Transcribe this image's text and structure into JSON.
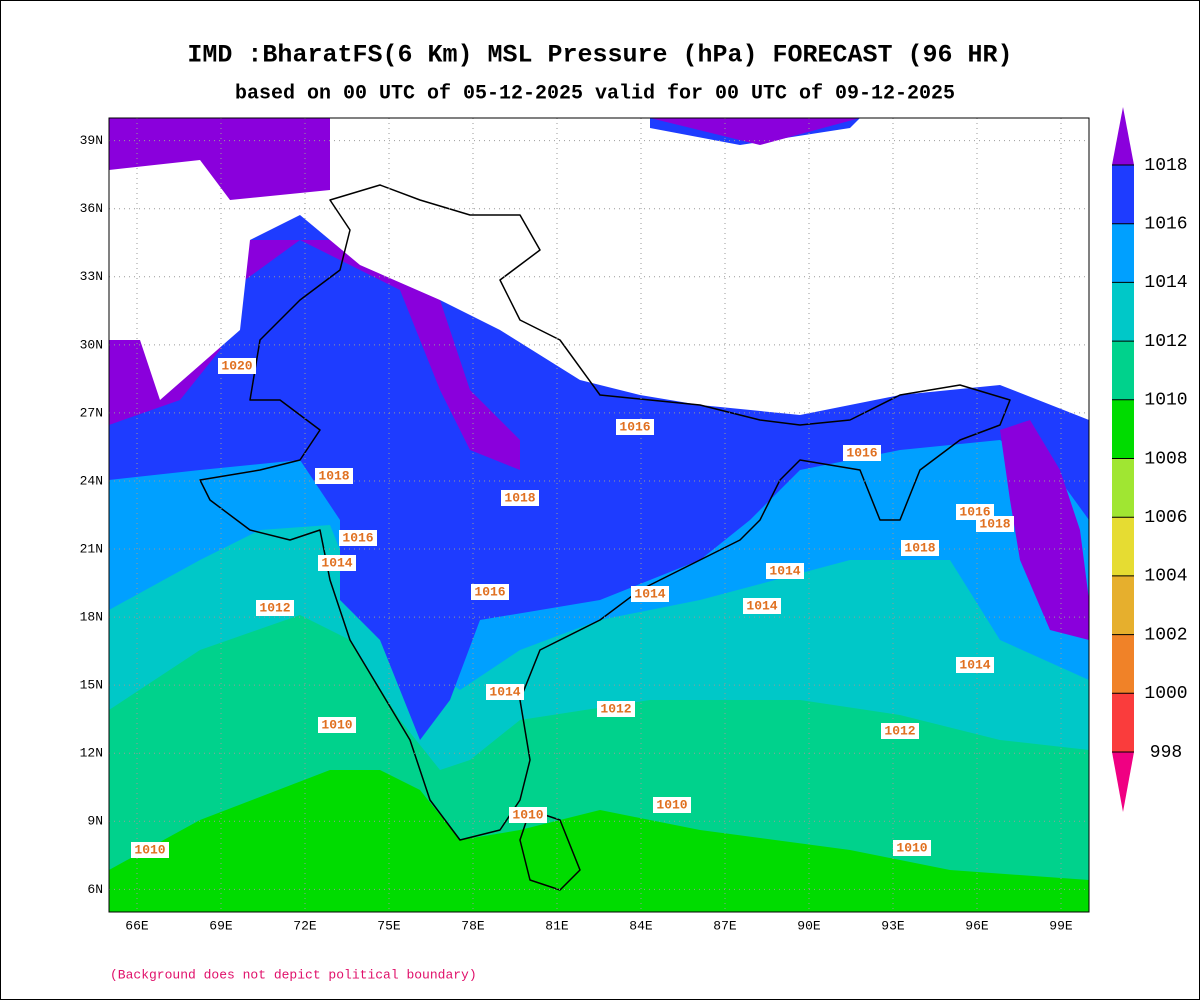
{
  "title": "IMD :BharatFS(6 Km) MSL Pressure (hPa) FORECAST (96 HR)",
  "subtitle": "based on 00 UTC of 05-12-2025 valid for 00 UTC of 09-12-2025",
  "footnote": "(Background does not depict political boundary)",
  "lon_range": [
    65,
    100
  ],
  "lat_range": [
    5,
    40
  ],
  "lon_ticks": [
    {
      "value": 66,
      "label": "66E"
    },
    {
      "value": 69,
      "label": "69E"
    },
    {
      "value": 72,
      "label": "72E"
    },
    {
      "value": 75,
      "label": "75E"
    },
    {
      "value": 78,
      "label": "78E"
    },
    {
      "value": 81,
      "label": "81E"
    },
    {
      "value": 84,
      "label": "84E"
    },
    {
      "value": 87,
      "label": "87E"
    },
    {
      "value": 90,
      "label": "90E"
    },
    {
      "value": 93,
      "label": "93E"
    },
    {
      "value": 96,
      "label": "96E"
    },
    {
      "value": 99,
      "label": "99E"
    }
  ],
  "lat_ticks": [
    {
      "value": 6,
      "label": "6N"
    },
    {
      "value": 9,
      "label": "9N"
    },
    {
      "value": 12,
      "label": "12N"
    },
    {
      "value": 15,
      "label": "15N"
    },
    {
      "value": 18,
      "label": "18N"
    },
    {
      "value": 21,
      "label": "21N"
    },
    {
      "value": 24,
      "label": "24N"
    },
    {
      "value": 27,
      "label": "27N"
    },
    {
      "value": 30,
      "label": "30N"
    },
    {
      "value": 33,
      "label": "33N"
    },
    {
      "value": 36,
      "label": "36N"
    },
    {
      "value": 39,
      "label": "39N"
    }
  ],
  "colorbar": {
    "levels": [
      998,
      1000,
      1002,
      1004,
      1006,
      1008,
      1010,
      1012,
      1014,
      1016,
      1018
    ],
    "colors": [
      "#f00082",
      "#fa3c3c",
      "#f08228",
      "#e6af2d",
      "#e6dc32",
      "#a0e632",
      "#00dc00",
      "#00d28c",
      "#00c8c8",
      "#00a0ff",
      "#1e3cff",
      "#8a00dc"
    ]
  },
  "contour_labels": [
    1020,
    1018,
    1018,
    1016,
    1016,
    1014,
    1012,
    1016,
    1014,
    1014,
    1014,
    1014,
    1012,
    1010,
    1010,
    1010,
    1010,
    1012,
    1010,
    1014,
    1016,
    1018,
    1016,
    1018
  ]
}
